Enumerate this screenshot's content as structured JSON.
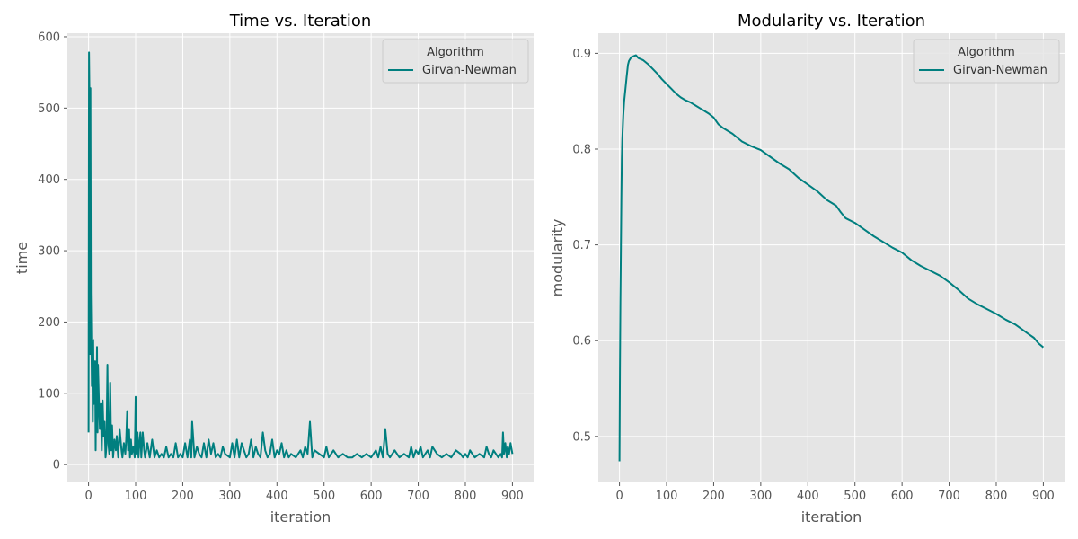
{
  "chart_data": [
    {
      "type": "line",
      "title": "Time vs. Iteration",
      "xlabel": "iteration",
      "ylabel": "time",
      "xlim": [
        -45,
        945
      ],
      "ylim": [
        -25,
        605
      ],
      "xticks": [
        0,
        100,
        200,
        300,
        400,
        500,
        600,
        700,
        800,
        900
      ],
      "yticks": [
        0,
        100,
        200,
        300,
        400,
        500,
        600
      ],
      "grid": true,
      "legend": {
        "title": "Algorithm",
        "position": "top-right"
      },
      "colors": {
        "line": "#007f7f",
        "background": "#e5e5e5",
        "grid": "#ffffff"
      },
      "series": [
        {
          "name": "Girvan-Newman",
          "x": [
            0,
            1,
            2,
            3,
            4,
            5,
            6,
            7,
            8,
            9,
            10,
            11,
            12,
            13,
            14,
            15,
            16,
            17,
            18,
            19,
            20,
            22,
            24,
            26,
            28,
            30,
            32,
            34,
            36,
            38,
            40,
            42,
            44,
            46,
            48,
            50,
            52,
            55,
            58,
            60,
            63,
            66,
            70,
            72,
            75,
            78,
            80,
            82,
            84,
            86,
            88,
            90,
            92,
            95,
            98,
            100,
            102,
            104,
            106,
            108,
            110,
            112,
            115,
            118,
            120,
            125,
            130,
            135,
            140,
            145,
            150,
            155,
            160,
            165,
            170,
            175,
            180,
            185,
            190,
            195,
            200,
            205,
            210,
            215,
            218,
            220,
            225,
            230,
            235,
            240,
            245,
            250,
            255,
            260,
            265,
            270,
            275,
            280,
            285,
            290,
            300,
            305,
            310,
            315,
            320,
            325,
            330,
            335,
            340,
            345,
            350,
            355,
            360,
            365,
            370,
            375,
            380,
            385,
            390,
            395,
            400,
            405,
            410,
            415,
            420,
            425,
            430,
            440,
            450,
            455,
            460,
            465,
            470,
            475,
            480,
            490,
            500,
            505,
            510,
            515,
            520,
            530,
            540,
            550,
            560,
            570,
            580,
            590,
            600,
            610,
            615,
            620,
            625,
            630,
            635,
            640,
            650,
            660,
            670,
            680,
            685,
            690,
            695,
            700,
            705,
            710,
            715,
            720,
            725,
            730,
            740,
            750,
            760,
            770,
            780,
            790,
            795,
            800,
            805,
            810,
            815,
            820,
            830,
            840,
            845,
            850,
            855,
            860,
            865,
            870,
            875,
            878,
            880,
            882,
            885,
            888,
            890,
            893,
            896,
            900
          ],
          "values": [
            45,
            578,
            520,
            155,
            528,
            240,
            180,
            110,
            150,
            60,
            175,
            85,
            140,
            120,
            145,
            20,
            110,
            90,
            165,
            45,
            140,
            90,
            50,
            85,
            20,
            90,
            40,
            60,
            10,
            25,
            140,
            30,
            15,
            115,
            20,
            55,
            10,
            35,
            20,
            40,
            10,
            50,
            20,
            10,
            30,
            15,
            35,
            75,
            20,
            50,
            10,
            35,
            15,
            25,
            10,
            95,
            15,
            45,
            10,
            30,
            45,
            10,
            45,
            20,
            10,
            30,
            10,
            35,
            10,
            20,
            10,
            15,
            10,
            25,
            10,
            15,
            10,
            30,
            10,
            15,
            10,
            30,
            10,
            35,
            10,
            60,
            10,
            25,
            15,
            10,
            30,
            10,
            35,
            15,
            30,
            10,
            15,
            10,
            25,
            15,
            10,
            30,
            10,
            35,
            10,
            30,
            20,
            10,
            15,
            35,
            10,
            25,
            15,
            10,
            45,
            20,
            10,
            15,
            35,
            10,
            20,
            15,
            30,
            10,
            20,
            10,
            15,
            10,
            20,
            10,
            25,
            15,
            60,
            10,
            20,
            15,
            10,
            25,
            10,
            15,
            20,
            10,
            15,
            10,
            10,
            15,
            10,
            15,
            10,
            20,
            10,
            25,
            10,
            50,
            15,
            10,
            20,
            10,
            15,
            10,
            25,
            10,
            20,
            15,
            25,
            10,
            15,
            20,
            10,
            25,
            15,
            10,
            15,
            10,
            20,
            15,
            10,
            15,
            10,
            20,
            15,
            10,
            15,
            10,
            25,
            15,
            10,
            20,
            15,
            10,
            15,
            10,
            45,
            15,
            30,
            10,
            25,
            15,
            30,
            15
          ]
        }
      ]
    },
    {
      "type": "line",
      "title": "Modularity vs. Iteration",
      "xlabel": "iteration",
      "ylabel": "modularity",
      "xlim": [
        -45,
        945
      ],
      "ylim": [
        0.452,
        0.921
      ],
      "xticks": [
        0,
        100,
        200,
        300,
        400,
        500,
        600,
        700,
        800,
        900
      ],
      "yticks": [
        0.5,
        0.6,
        0.7,
        0.8,
        0.9
      ],
      "grid": true,
      "legend": {
        "title": "Algorithm",
        "position": "top-right"
      },
      "colors": {
        "line": "#007f7f",
        "background": "#e5e5e5",
        "grid": "#ffffff"
      },
      "series": [
        {
          "name": "Girvan-Newman",
          "x": [
            0,
            1,
            2,
            3,
            4,
            5,
            6,
            8,
            10,
            12,
            15,
            18,
            20,
            25,
            30,
            35,
            40,
            50,
            60,
            70,
            80,
            90,
            100,
            110,
            120,
            130,
            140,
            150,
            160,
            170,
            180,
            190,
            200,
            210,
            220,
            240,
            260,
            280,
            300,
            320,
            340,
            360,
            380,
            400,
            420,
            440,
            460,
            470,
            480,
            500,
            520,
            540,
            560,
            580,
            600,
            620,
            640,
            660,
            680,
            700,
            720,
            740,
            760,
            780,
            800,
            820,
            840,
            860,
            880,
            890,
            900
          ],
          "values": [
            0.474,
            0.57,
            0.64,
            0.7,
            0.75,
            0.79,
            0.81,
            0.835,
            0.85,
            0.86,
            0.875,
            0.888,
            0.892,
            0.896,
            0.897,
            0.898,
            0.895,
            0.893,
            0.889,
            0.884,
            0.879,
            0.873,
            0.868,
            0.863,
            0.858,
            0.854,
            0.851,
            0.849,
            0.846,
            0.843,
            0.84,
            0.837,
            0.833,
            0.826,
            0.822,
            0.816,
            0.808,
            0.803,
            0.799,
            0.792,
            0.785,
            0.779,
            0.77,
            0.763,
            0.756,
            0.747,
            0.741,
            0.734,
            0.728,
            0.723,
            0.716,
            0.709,
            0.703,
            0.697,
            0.692,
            0.684,
            0.678,
            0.673,
            0.668,
            0.661,
            0.653,
            0.644,
            0.638,
            0.633,
            0.628,
            0.622,
            0.617,
            0.61,
            0.603,
            0.597,
            0.593
          ]
        }
      ]
    }
  ]
}
